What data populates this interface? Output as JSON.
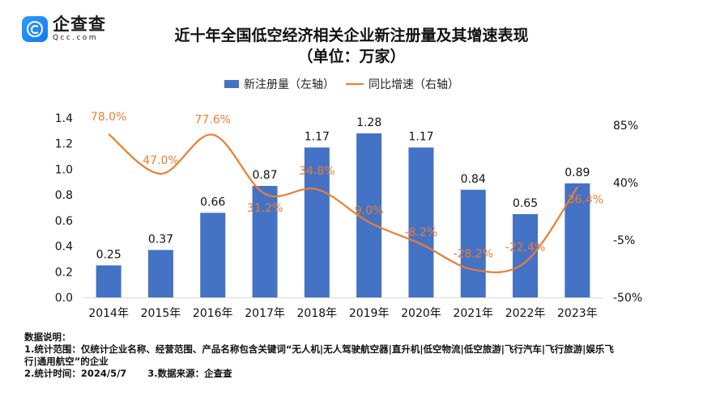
{
  "logo": {
    "name_cn": "企查查",
    "name_en": "Qcc.com"
  },
  "chart_data": {
    "type": "bar+line",
    "title": "近十年全国低空经济相关企业新注册量及其增速表现",
    "subtitle": "（单位：万家）",
    "categories": [
      "2014年",
      "2015年",
      "2016年",
      "2017年",
      "2018年",
      "2019年",
      "2020年",
      "2021年",
      "2022年",
      "2023年"
    ],
    "series": [
      {
        "name": "新注册量（左轴）",
        "type": "bar",
        "axis": "left",
        "color": "#4472c4",
        "values": [
          0.25,
          0.37,
          0.66,
          0.87,
          1.17,
          1.28,
          1.17,
          0.84,
          0.65,
          0.89
        ],
        "labels": [
          "0.25",
          "0.37",
          "0.66",
          "0.87",
          "1.17",
          "1.28",
          "1.17",
          "0.84",
          "0.65",
          "0.89"
        ]
      },
      {
        "name": "同比增速（右轴）",
        "type": "line",
        "axis": "right",
        "color": "#ed7d31",
        "smooth": true,
        "values": [
          78.0,
          47.0,
          77.6,
          31.2,
          34.8,
          9.0,
          -8.2,
          -28.2,
          -22.4,
          36.4
        ],
        "labels": [
          "78.0%",
          "47.0%",
          "77.6%",
          "31.2%",
          "34.8%",
          "9.0%",
          "-8.2%",
          "-28.2%",
          "-22.4%",
          "36.4%"
        ]
      }
    ],
    "left_axis": {
      "ylim": [
        0,
        1.4
      ],
      "ticks": [
        "0.0",
        "0.2",
        "0.4",
        "0.6",
        "0.8",
        "1.0",
        "1.2",
        "1.4"
      ]
    },
    "right_axis": {
      "ylim": [
        -50,
        85
      ],
      "ticks": [
        "-50%",
        "-5%",
        "40%",
        "85%"
      ],
      "tick_values": [
        -50,
        -5,
        40,
        85
      ]
    },
    "grid": false,
    "legend_position": "top-center"
  },
  "notes": {
    "heading": "数据说明：",
    "line1": "1.统计范围：仅统计企业名称、经营范围、产品名称包含关键词“无人机|无人驾驶航空器|直升机|低空物流|低空旅游|飞行汽车|飞行旅游|娱乐飞",
    "line2": "行|通用航空”的企业",
    "time": "2.统计时间：2024/5/7",
    "source": "3.数据来源：企查查"
  }
}
